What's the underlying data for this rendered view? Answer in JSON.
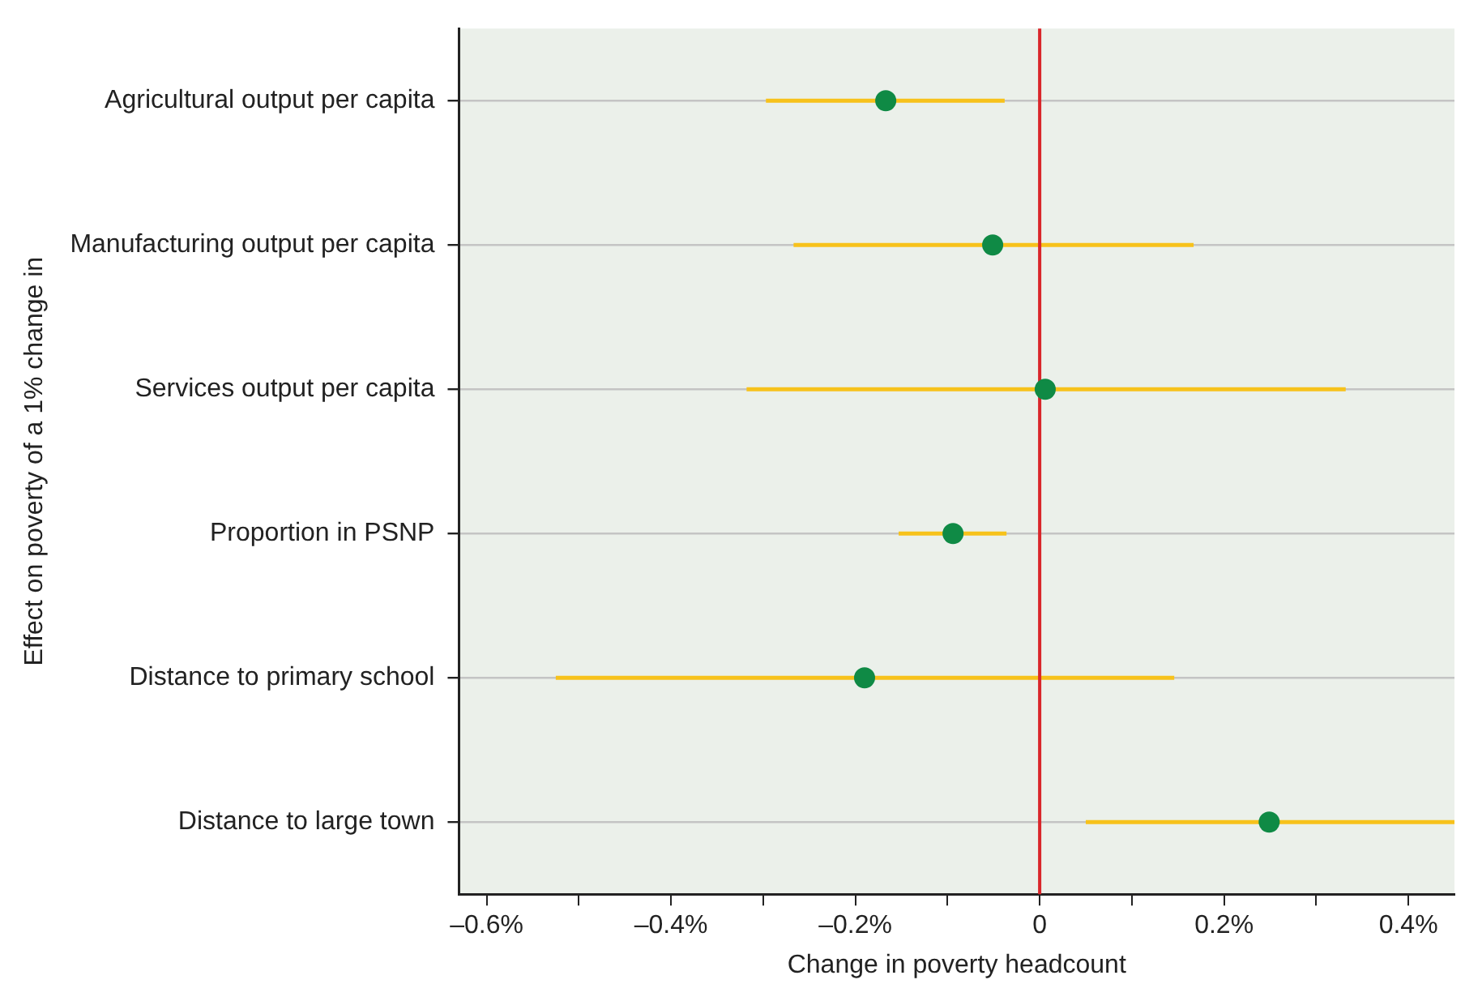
{
  "chart_data": {
    "type": "scatter",
    "orientation": "horizontal",
    "xlabel": "Change in poverty headcount",
    "ylabel": "Effect on poverty of a 1% change in",
    "categories": [
      "Agricultural output per capita",
      "Manufacturing output per capita",
      "Services output per capita",
      "Proportion in PSNP",
      "Distance to primary school",
      "Distance to large town"
    ],
    "series": [
      {
        "color": "#0f8a45",
        "values": [
          -0.167,
          -0.051,
          0.006,
          -0.094,
          -0.19,
          0.249
        ],
        "errors": [
          [
            -0.297,
            -0.038
          ],
          [
            -0.267,
            0.167
          ],
          [
            -0.318,
            0.332
          ],
          [
            -0.153,
            -0.036
          ],
          [
            -0.525,
            0.146
          ],
          [
            0.05,
            0.45
          ]
        ]
      }
    ],
    "xlim": [
      -0.63,
      0.45
    ],
    "xticks": [
      {
        "value": -0.6,
        "label": "–0.6%"
      },
      {
        "value": -0.5,
        "label": null
      },
      {
        "value": -0.4,
        "label": "–0.4%"
      },
      {
        "value": -0.3,
        "label": null
      },
      {
        "value": -0.2,
        "label": "–0.2%"
      },
      {
        "value": -0.1,
        "label": null
      },
      0,
      {
        "value": 0.1,
        "label": null
      },
      {
        "value": 0.2,
        "label": "0.2%"
      },
      {
        "value": 0.3,
        "label": null
      },
      {
        "value": 0.4,
        "label": "0.4%"
      }
    ],
    "ref_lines": [
      {
        "axis": "x",
        "value": 0,
        "color": "#d9252a"
      }
    ],
    "grid": "y",
    "legend": false,
    "marker": "circle"
  }
}
